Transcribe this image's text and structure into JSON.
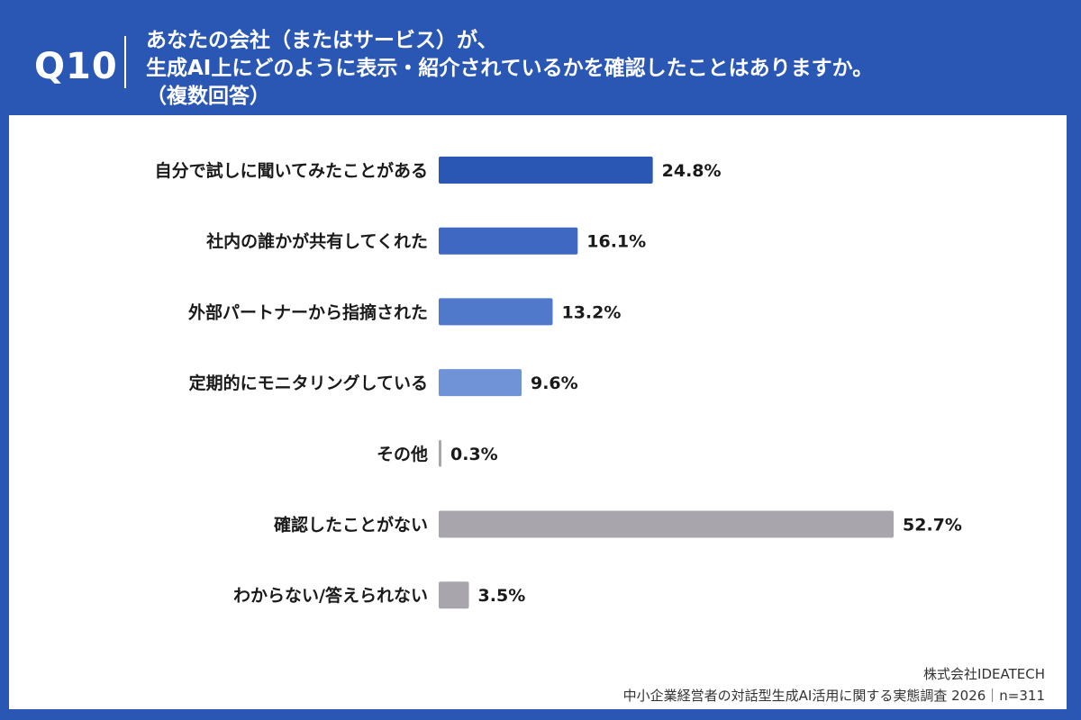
{
  "header": {
    "question_number": "Q10",
    "line1": "あなたの会社（またはサービス）が、",
    "line2": "生成AI上にどのように表示・紹介されているかを確認したことはありますか。",
    "line3": "（複数回答）"
  },
  "chart_data": {
    "type": "bar",
    "orientation": "horizontal",
    "categories": [
      "自分で試しに聞いてみたことがある",
      "社内の誰かが共有してくれた",
      "外部パートナーから指摘された",
      "定期的にモニタリングしている",
      "その他",
      "確認したことがない",
      "わからない/答えられない"
    ],
    "values": [
      24.8,
      16.1,
      13.2,
      9.6,
      0.3,
      52.7,
      3.5
    ],
    "value_labels": [
      "24.8%",
      "16.1%",
      "13.2%",
      "9.6%",
      "0.3%",
      "52.7%",
      "3.5%"
    ],
    "colors": [
      "#2a56b4",
      "#3f68c2",
      "#5079cc",
      "#6f93d6",
      "#a8a6ac",
      "#a8a6ac",
      "#a8a6ac"
    ],
    "xlim": [
      0,
      52.7
    ],
    "grid": false,
    "legend": "none"
  },
  "footer": {
    "company": "株式会社IDEATECH",
    "survey": "中小企業経営者の対話型生成AI活用に関する実態調査 2026｜n=311"
  }
}
